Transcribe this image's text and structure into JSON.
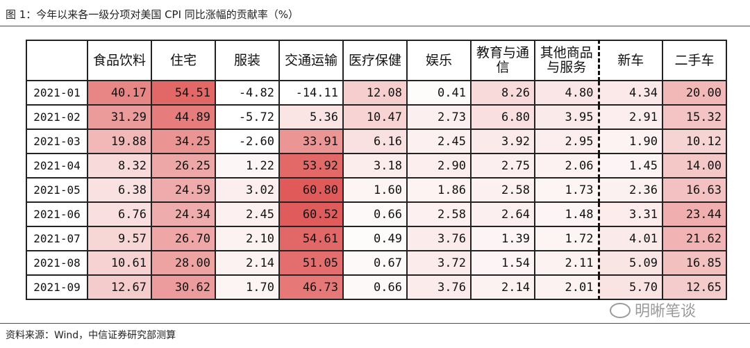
{
  "title": "图 1：今年以来各一级分项对美国 CPI 同比涨幅的贡献率（%）",
  "source": "资料来源：Wind，中信证券研究部测算",
  "watermark": "明晰笔谈",
  "colors": {
    "rule": "#b71c1c",
    "heat_max": "#e05a5a",
    "heat_min": "#ffffff"
  },
  "chart_data": {
    "type": "heatmap",
    "title": "图 1：今年以来各一级分项对美国 CPI 同比涨幅的贡献率（%）",
    "columns": [
      "食品饮料",
      "住宅",
      "服装",
      "交通运输",
      "医疗保健",
      "娱乐",
      "教育与通信",
      "其他商品与服务",
      "新车",
      "二手车"
    ],
    "rows": [
      "2021-01",
      "2021-02",
      "2021-03",
      "2021-04",
      "2021-05",
      "2021-06",
      "2021-07",
      "2021-08",
      "2021-09"
    ],
    "values": [
      [
        "40.17",
        "54.51",
        "-4.82",
        "-14.11",
        "12.08",
        "0.41",
        "8.26",
        "4.80",
        "4.34",
        "20.00"
      ],
      [
        "31.29",
        "44.89",
        "-5.72",
        "5.36",
        "10.47",
        "2.73",
        "6.80",
        "3.95",
        "2.91",
        "15.32"
      ],
      [
        "19.88",
        "34.25",
        "-2.60",
        "33.91",
        "6.16",
        "2.45",
        "3.92",
        "2.95",
        "1.90",
        "10.12"
      ],
      [
        "8.32",
        "26.25",
        "1.22",
        "53.92",
        "3.18",
        "2.90",
        "2.75",
        "2.06",
        "1.45",
        "14.00"
      ],
      [
        "6.38",
        "24.59",
        "3.02",
        "60.80",
        "1.60",
        "1.86",
        "2.58",
        "1.73",
        "2.36",
        "16.63"
      ],
      [
        "6.76",
        "24.34",
        "2.45",
        "60.52",
        "0.66",
        "2.58",
        "2.64",
        "1.48",
        "3.31",
        "23.44"
      ],
      [
        "9.57",
        "26.70",
        "2.10",
        "54.61",
        "0.49",
        "3.76",
        "1.39",
        "1.72",
        "4.01",
        "21.62"
      ],
      [
        "10.61",
        "28.00",
        "2.14",
        "51.05",
        "0.67",
        "3.72",
        "1.54",
        "2.11",
        "5.09",
        "16.85"
      ],
      [
        "12.67",
        "30.62",
        "1.70",
        "46.73",
        "0.66",
        "3.76",
        "2.14",
        "2.01",
        "5.70",
        "12.65"
      ]
    ]
  }
}
